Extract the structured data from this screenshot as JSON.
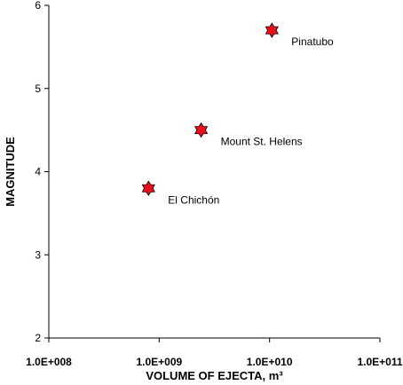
{
  "chart_data": {
    "type": "scatter",
    "xscale": "log",
    "xlabel": "VOLUME OF EJECTA, m³",
    "ylabel": "MAGNITUDE",
    "xlim": [
      100000000,
      100000000000
    ],
    "ylim": [
      2,
      6
    ],
    "x_ticks": [
      {
        "value": 100000000,
        "label": "1.0E+008"
      },
      {
        "value": 1000000000,
        "label": "1.0E+009"
      },
      {
        "value": 10000000000,
        "label": "1.0E+010"
      },
      {
        "value": 100000000000,
        "label": "1.0E+011"
      }
    ],
    "y_ticks": [
      {
        "value": 2,
        "label": "2"
      },
      {
        "value": 3,
        "label": "3"
      },
      {
        "value": 4,
        "label": "4"
      },
      {
        "value": 5,
        "label": "5"
      },
      {
        "value": 6,
        "label": "6"
      }
    ],
    "grid": false,
    "marker": "star",
    "marker_color": "#e8101b",
    "points": [
      {
        "label": "El Chichón",
        "x": 800000000,
        "y": 3.8
      },
      {
        "label": "Mount St. Helens",
        "x": 2400000000,
        "y": 4.5
      },
      {
        "label": "Pinatubo",
        "x": 10500000000,
        "y": 5.7
      }
    ]
  }
}
